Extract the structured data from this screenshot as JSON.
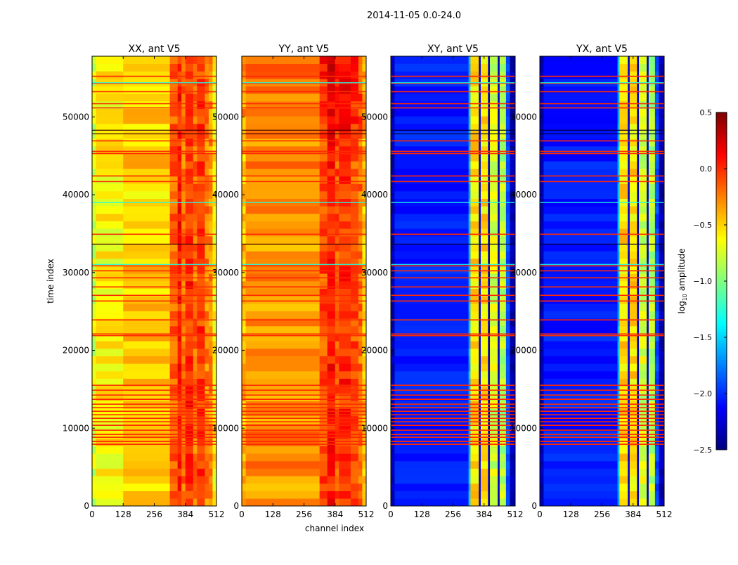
{
  "chart_data": {
    "type": "heatmap",
    "title": "2014-11-05 0.0-24.0",
    "xlabel": "channel index",
    "ylabel": "time index",
    "xlim": [
      0,
      512
    ],
    "ylim": [
      0,
      57800
    ],
    "xticks": [
      "0",
      "128",
      "256",
      "384",
      "512"
    ],
    "yticks": [
      "0",
      "10000",
      "20000",
      "30000",
      "40000",
      "50000"
    ],
    "colorbar": {
      "label_main": "log",
      "label_sub": "10",
      "label_tail": " amplitude",
      "range": [
        -2.5,
        0.5
      ],
      "ticks": [
        "0.5",
        "0.0",
        "−0.5",
        "−1.0",
        "−1.5",
        "−2.0",
        "−2.5"
      ],
      "tick_values": [
        0.5,
        0.0,
        -0.5,
        -1.0,
        -1.5,
        -2.0,
        -2.5
      ],
      "colormap": "jet"
    },
    "flag_rows_red": [
      55230,
      54330,
      53250,
      51710,
      51170,
      46930,
      45580,
      45300,
      42420,
      41700,
      34930,
      30870,
      30230,
      29330,
      28160,
      27080,
      26350,
      23920,
      22110,
      21900,
      15520,
      14890,
      14260,
      13720,
      13090,
      12640,
      12180,
      11730,
      11280,
      10830,
      10380,
      9750,
      9200,
      8840,
      8300,
      7940
    ],
    "flag_rows_dark": [
      48300,
      47830,
      33660
    ],
    "flag_rows_cyan": [
      54400,
      39000,
      31050
    ],
    "panels": [
      {
        "title": "XX, ant V5",
        "show_ylabel": true,
        "segments": [
          {
            "from": 0,
            "to": 16,
            "value": -0.75
          },
          {
            "from": 16,
            "to": 128,
            "value": -0.6
          },
          {
            "from": 128,
            "to": 320,
            "value": -0.5
          },
          {
            "from": 320,
            "to": 352,
            "value": -0.15
          },
          {
            "from": 352,
            "to": 368,
            "value": 0.05
          },
          {
            "from": 368,
            "to": 384,
            "value": -0.2
          },
          {
            "from": 384,
            "to": 416,
            "value": 0.0
          },
          {
            "from": 416,
            "to": 432,
            "value": -0.2
          },
          {
            "from": 432,
            "to": 464,
            "value": -0.05
          },
          {
            "from": 464,
            "to": 480,
            "value": -0.25
          },
          {
            "from": 480,
            "to": 496,
            "value": -0.3
          },
          {
            "from": 496,
            "to": 512,
            "value": -0.6
          }
        ],
        "upper_offset": 0.0
      },
      {
        "title": "YY, ant V5",
        "show_ylabel": false,
        "segments": [
          {
            "from": 0,
            "to": 16,
            "value": -0.45
          },
          {
            "from": 16,
            "to": 320,
            "value": -0.3
          },
          {
            "from": 320,
            "to": 352,
            "value": -0.1
          },
          {
            "from": 352,
            "to": 384,
            "value": 0.05
          },
          {
            "from": 384,
            "to": 400,
            "value": -0.1
          },
          {
            "from": 400,
            "to": 448,
            "value": 0.0
          },
          {
            "from": 448,
            "to": 480,
            "value": -0.1
          },
          {
            "from": 480,
            "to": 496,
            "value": -0.2
          },
          {
            "from": 496,
            "to": 512,
            "value": -0.45
          }
        ],
        "upper_offset": 0.12
      },
      {
        "title": "XY, ant V5",
        "show_ylabel": false,
        "segments": [
          {
            "from": 0,
            "to": 16,
            "value": -2.35
          },
          {
            "from": 16,
            "to": 320,
            "value": -2.05
          },
          {
            "from": 320,
            "to": 328,
            "value": -1.6
          },
          {
            "from": 328,
            "to": 362,
            "value": -0.55
          },
          {
            "from": 362,
            "to": 370,
            "value": -2.2
          },
          {
            "from": 370,
            "to": 400,
            "value": -0.55
          },
          {
            "from": 400,
            "to": 408,
            "value": -2.3
          },
          {
            "from": 408,
            "to": 440,
            "value": -0.75
          },
          {
            "from": 440,
            "to": 448,
            "value": -2.3
          },
          {
            "from": 448,
            "to": 474,
            "value": -0.85
          },
          {
            "from": 474,
            "to": 490,
            "value": -1.9
          },
          {
            "from": 490,
            "to": 512,
            "value": -2.35
          }
        ],
        "upper_offset": 0.0
      },
      {
        "title": "YX, ant V5",
        "show_ylabel": false,
        "segments": [
          {
            "from": 0,
            "to": 16,
            "value": -2.35
          },
          {
            "from": 16,
            "to": 320,
            "value": -2.05
          },
          {
            "from": 320,
            "to": 328,
            "value": -1.6
          },
          {
            "from": 328,
            "to": 362,
            "value": -0.55
          },
          {
            "from": 362,
            "to": 370,
            "value": -2.2
          },
          {
            "from": 370,
            "to": 400,
            "value": -0.55
          },
          {
            "from": 400,
            "to": 408,
            "value": -2.3
          },
          {
            "from": 408,
            "to": 440,
            "value": -0.75
          },
          {
            "from": 440,
            "to": 448,
            "value": -2.3
          },
          {
            "from": 448,
            "to": 474,
            "value": -0.85
          },
          {
            "from": 474,
            "to": 490,
            "value": -1.9
          },
          {
            "from": 490,
            "to": 512,
            "value": -2.35
          }
        ],
        "upper_offset": 0.0
      }
    ]
  }
}
